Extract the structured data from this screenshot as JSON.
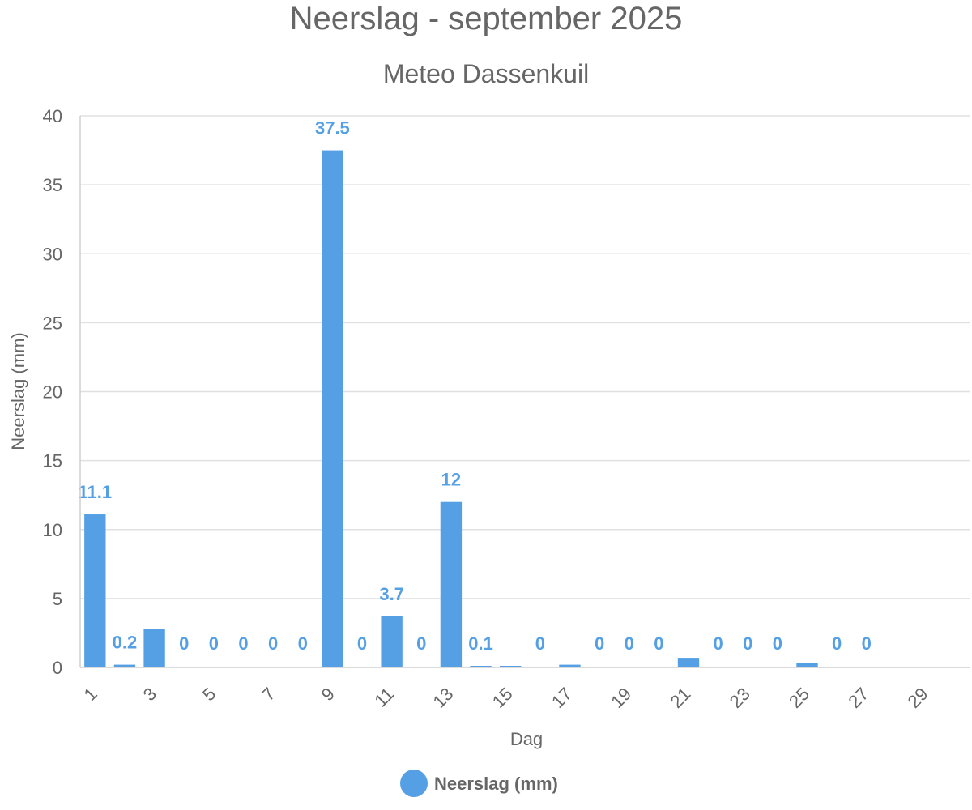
{
  "chart_data": {
    "type": "bar",
    "title": "Neerslag - september 2025",
    "subtitle": "Meteo Dassenkuil",
    "xlabel": "Dag",
    "ylabel": "Neerslag (mm)",
    "ylim": [
      0,
      40
    ],
    "yticks": [
      0,
      5,
      10,
      15,
      20,
      25,
      30,
      35,
      40
    ],
    "grid": true,
    "legend_position": "bottom",
    "bar_color": "#55a0e4",
    "categories": [
      "1",
      "2",
      "3",
      "4",
      "5",
      "6",
      "7",
      "8",
      "9",
      "10",
      "11",
      "12",
      "13",
      "14",
      "15",
      "16",
      "17",
      "18",
      "19",
      "20",
      "21",
      "22",
      "23",
      "24",
      "25",
      "26",
      "27",
      "28",
      "29",
      "30"
    ],
    "xtick_labels": [
      "1",
      "3",
      "5",
      "7",
      "9",
      "11",
      "13",
      "15",
      "17",
      "19",
      "21",
      "23",
      "25",
      "27",
      "29"
    ],
    "series": [
      {
        "name": "Neerslag (mm)",
        "values": [
          11.1,
          0.2,
          2.8,
          0,
          0,
          0,
          0,
          0,
          37.5,
          0,
          3.7,
          0,
          12,
          0.1,
          0.1,
          0,
          0.2,
          0,
          0,
          0,
          0.7,
          0,
          0,
          0,
          0.3,
          0,
          0,
          null,
          null,
          null
        ]
      }
    ],
    "data_labels": [
      {
        "day": "1",
        "text": "11.1"
      },
      {
        "day": "2",
        "text": "0.2"
      },
      {
        "day": "4",
        "text": "0"
      },
      {
        "day": "5",
        "text": "0"
      },
      {
        "day": "6",
        "text": "0"
      },
      {
        "day": "7",
        "text": "0"
      },
      {
        "day": "8",
        "text": "0"
      },
      {
        "day": "9",
        "text": "37.5"
      },
      {
        "day": "10",
        "text": "0"
      },
      {
        "day": "11",
        "text": "3.7"
      },
      {
        "day": "12",
        "text": "0"
      },
      {
        "day": "13",
        "text": "12"
      },
      {
        "day": "14",
        "text": "0.1"
      },
      {
        "day": "16",
        "text": "0"
      },
      {
        "day": "18",
        "text": "0"
      },
      {
        "day": "19",
        "text": "0"
      },
      {
        "day": "20",
        "text": "0"
      },
      {
        "day": "22",
        "text": "0"
      },
      {
        "day": "23",
        "text": "0"
      },
      {
        "day": "24",
        "text": "0"
      },
      {
        "day": "26",
        "text": "0"
      },
      {
        "day": "27",
        "text": "0"
      }
    ]
  }
}
